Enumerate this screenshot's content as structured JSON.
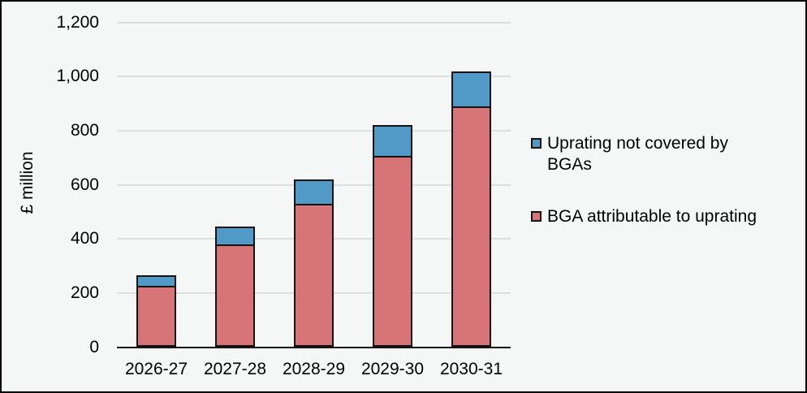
{
  "chart_data": {
    "type": "bar",
    "stacked": true,
    "title": "",
    "ylabel": "£ million",
    "categories": [
      "2026-27",
      "2027-28",
      "2028-29",
      "2029-30",
      "2030-31"
    ],
    "series": [
      {
        "name": "BGA attributable to uprating",
        "color": "#d67478",
        "values": [
          225,
          380,
          530,
          705,
          890
        ]
      },
      {
        "name": "Uprating not covered by BGAs",
        "color": "#5199c6",
        "values": [
          40,
          65,
          90,
          115,
          130
        ]
      }
    ],
    "totals": [
      265,
      445,
      620,
      820,
      1020
    ],
    "ylim": [
      0,
      1200
    ],
    "ytick_interval": 200,
    "ytick_labels": [
      "0",
      "200",
      "400",
      "600",
      "800",
      "1,000",
      "1,200"
    ],
    "grid": true,
    "legend_position": "right"
  },
  "legend": {
    "items": [
      {
        "label": "Uprating not covered by BGAs",
        "color": "#5199c6"
      },
      {
        "label": "BGA attributable to uprating",
        "color": "#d67478"
      }
    ]
  },
  "colors": {
    "background": "#f4f7f5",
    "frame_border": "#000000",
    "gridline": "#dddfdd",
    "axis_line": "#141414",
    "bar_border": "#141414",
    "text": "#000000"
  }
}
